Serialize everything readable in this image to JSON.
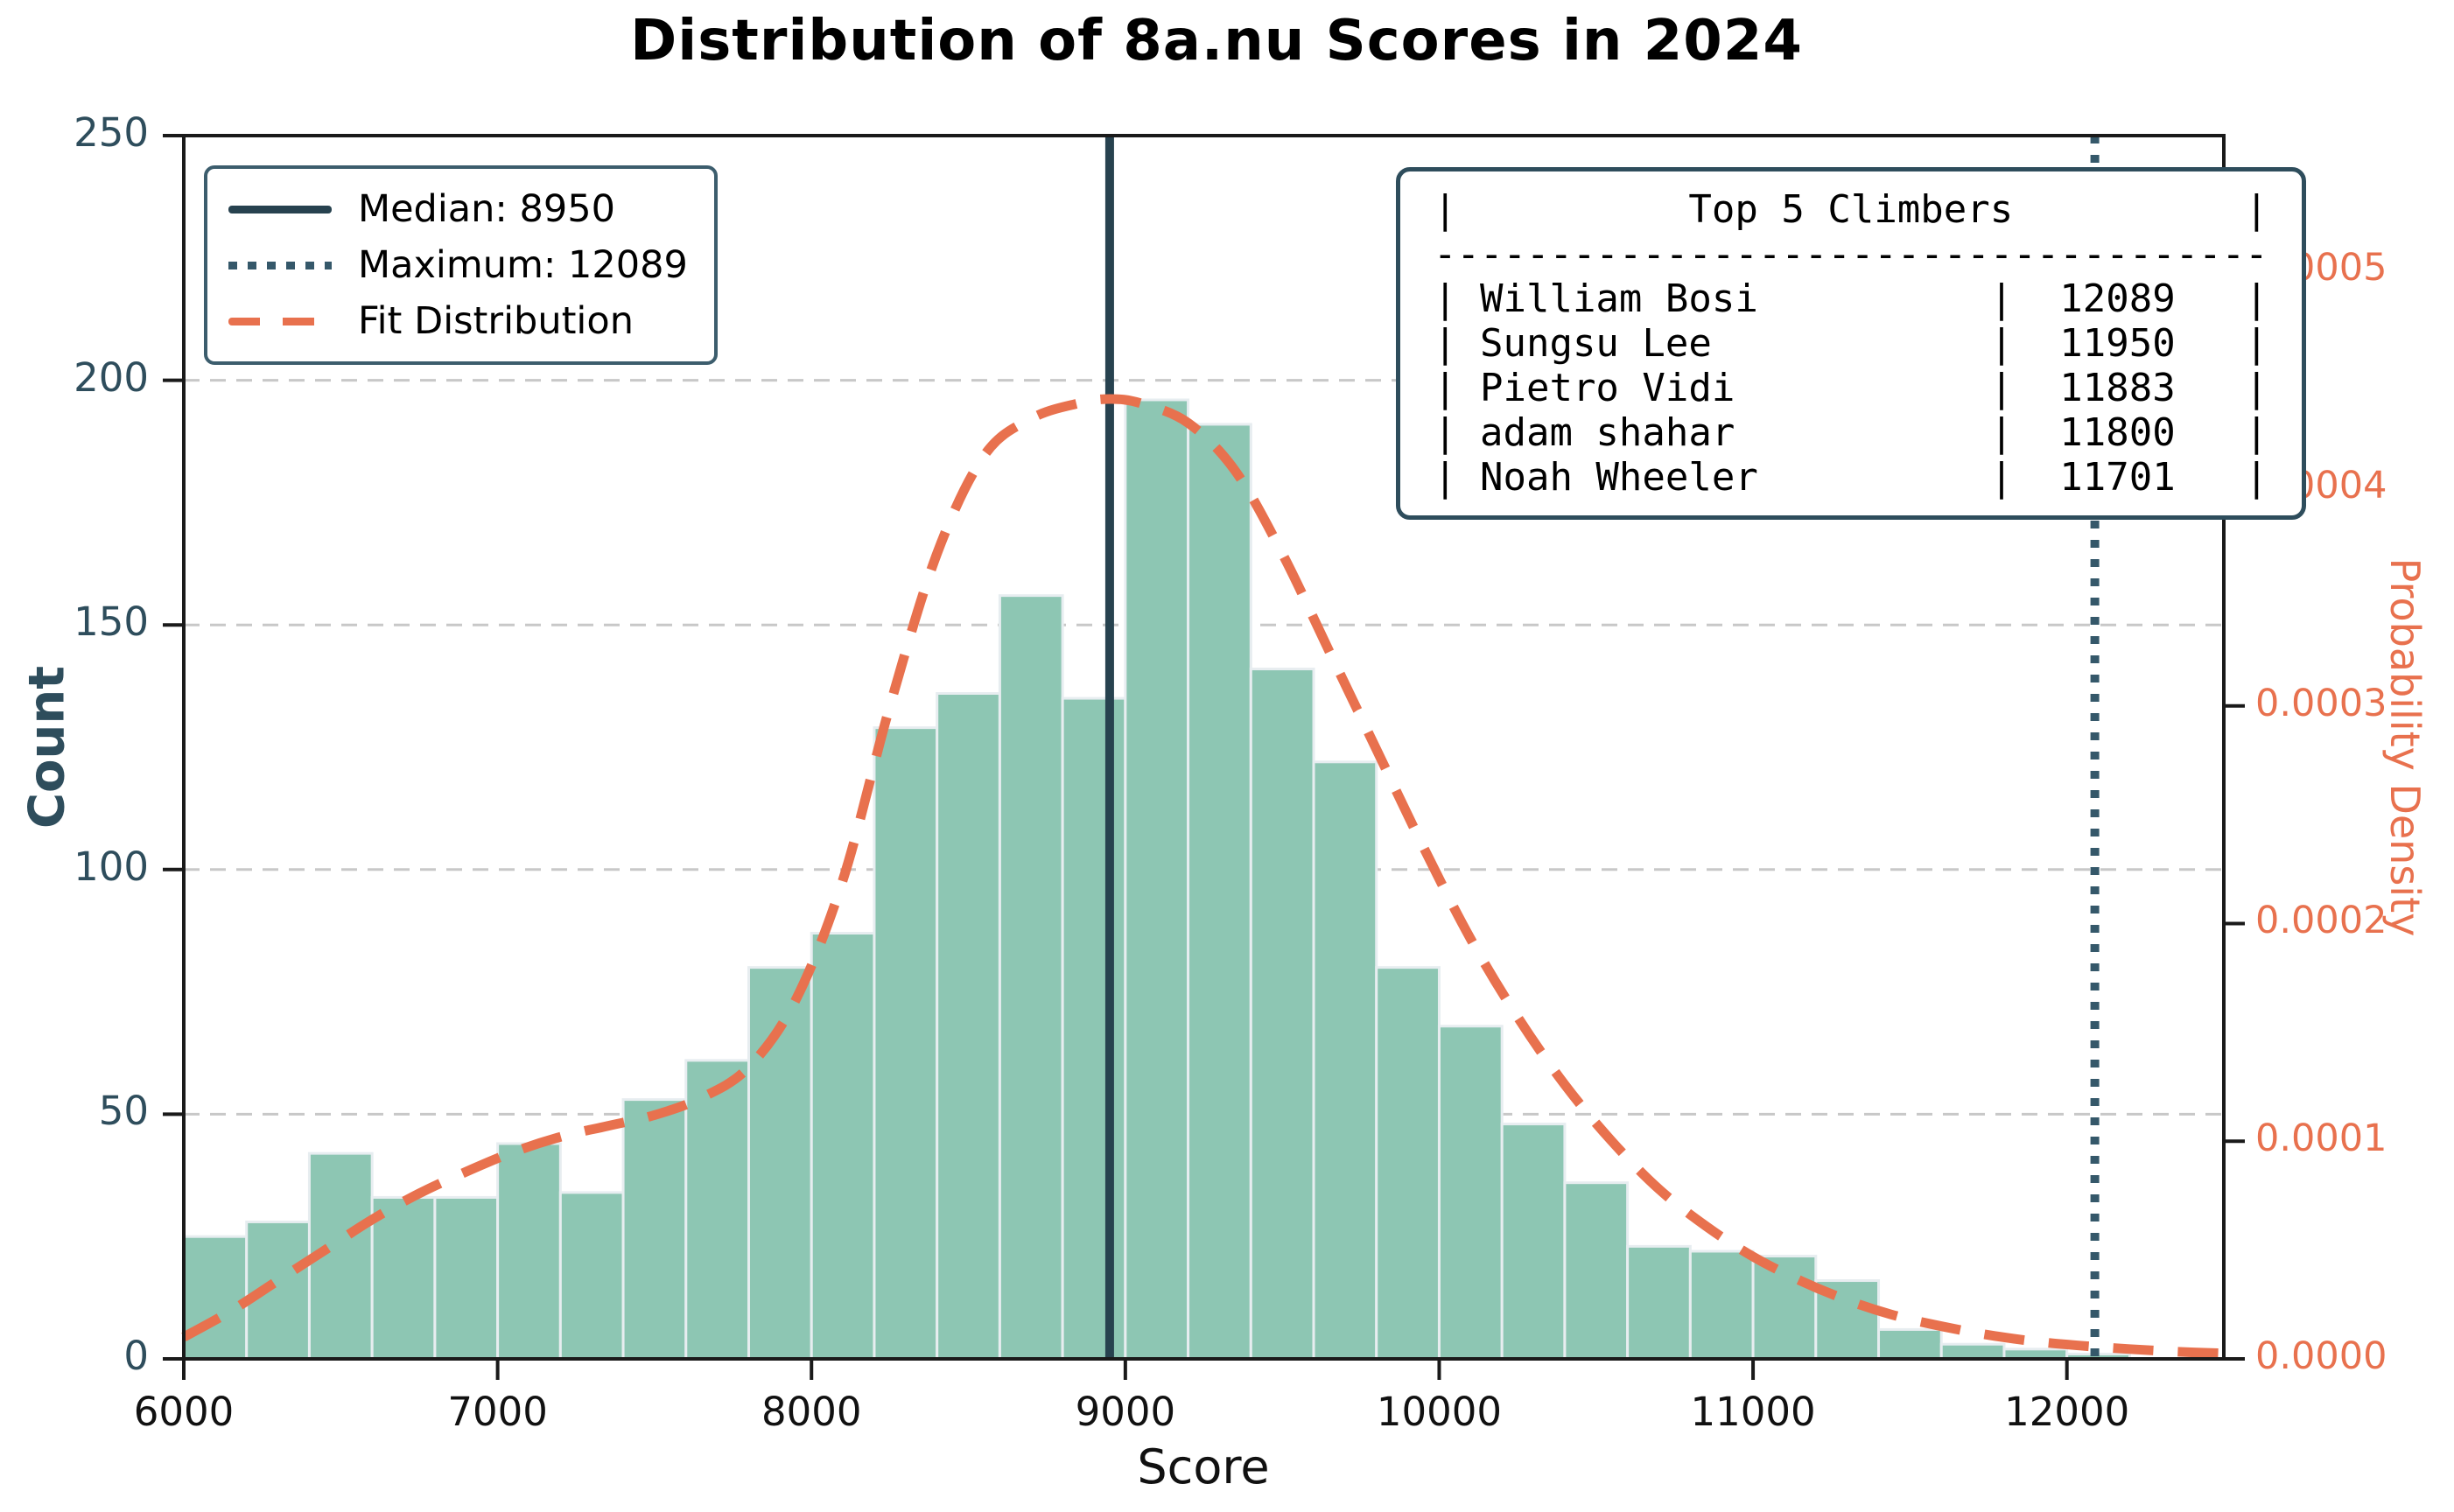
{
  "title": "Distribution of 8a.nu Scores in 2024",
  "axes": {
    "x_label": "Score",
    "y_left_label": "Count",
    "y_right_label": "Probability Density",
    "x_ticks": [
      {
        "value": 6000,
        "label": "6000"
      },
      {
        "value": 7000,
        "label": "7000"
      },
      {
        "value": 8000,
        "label": "8000"
      },
      {
        "value": 9000,
        "label": "9000"
      },
      {
        "value": 10000,
        "label": "10000"
      },
      {
        "value": 11000,
        "label": "11000"
      },
      {
        "value": 12000,
        "label": "12000"
      }
    ],
    "y_left_ticks": [
      {
        "value": 0,
        "label": "0"
      },
      {
        "value": 50,
        "label": "50"
      },
      {
        "value": 100,
        "label": "100"
      },
      {
        "value": 150,
        "label": "150"
      },
      {
        "value": 200,
        "label": "200"
      },
      {
        "value": 250,
        "label": "250"
      }
    ],
    "y_right_ticks": [
      {
        "value": 0.0,
        "label": "0.0000"
      },
      {
        "value": 0.0001,
        "label": "0.0001"
      },
      {
        "value": 0.0002,
        "label": "0.0002"
      },
      {
        "value": 0.0003,
        "label": "0.0003"
      },
      {
        "value": 0.0004,
        "label": "0.0004"
      },
      {
        "value": 0.0005,
        "label": "0.0005"
      }
    ]
  },
  "legend": {
    "items": [
      {
        "label": "Median: 8950",
        "style": "solid-dark"
      },
      {
        "label": "Maximum: 12089",
        "style": "dotted-dark"
      },
      {
        "label": "Fit Distribution",
        "style": "dashed-orange"
      }
    ]
  },
  "top5": {
    "title": "Top 5 Climbers",
    "rows": [
      {
        "name": "William Bosi",
        "score": 12089
      },
      {
        "name": "Sungsu Lee",
        "score": 11950
      },
      {
        "name": "Pietro Vidi",
        "score": 11883
      },
      {
        "name": "adam shahar",
        "score": 11800
      },
      {
        "name": "Noah Wheeler",
        "score": 11701
      }
    ]
  },
  "chart_data": {
    "type": "bar",
    "subtype": "histogram-with-fit",
    "title": "Distribution of 8a.nu Scores in 2024",
    "xlabel": "Score",
    "ylabel_left": "Count",
    "ylabel_right": "Probability Density",
    "x_range": [
      6000,
      12500
    ],
    "y_left_range": [
      0,
      250
    ],
    "y_right_range": [
      0,
      0.000562
    ],
    "grid_counts": [
      50,
      100,
      150,
      200
    ],
    "bin_start": 6000,
    "bin_width": 200,
    "counts": [
      25,
      28,
      42,
      33,
      33,
      44,
      34,
      53,
      61,
      80,
      87,
      129,
      136,
      156,
      135,
      196,
      191,
      141,
      122,
      80,
      68,
      48,
      36,
      23,
      22,
      21,
      16,
      6,
      3,
      2,
      1
    ],
    "median": 8950,
    "maximum": 12089,
    "fit_curve": {
      "points": [
        [
          6000,
          1e-05
        ],
        [
          6150,
          2.2e-05
        ],
        [
          6300,
          3.6e-05
        ],
        [
          6450,
          5e-05
        ],
        [
          6600,
          6.4e-05
        ],
        [
          6750,
          7.6e-05
        ],
        [
          6900,
          8.6e-05
        ],
        [
          7050,
          9.5e-05
        ],
        [
          7200,
          0.000102
        ],
        [
          7350,
          0.000107
        ],
        [
          7500,
          0.000112
        ],
        [
          7650,
          0.00012
        ],
        [
          7800,
          0.000134
        ],
        [
          7950,
          0.000165
        ],
        [
          8100,
          0.00022
        ],
        [
          8250,
          0.0003
        ],
        [
          8400,
          0.00037
        ],
        [
          8550,
          0.000415
        ],
        [
          8700,
          0.000432
        ],
        [
          8850,
          0.000439
        ],
        [
          8950,
          0.000441
        ],
        [
          9050,
          0.000439
        ],
        [
          9200,
          0.00043
        ],
        [
          9350,
          0.000408
        ],
        [
          9500,
          0.00037
        ],
        [
          9650,
          0.000325
        ],
        [
          9800,
          0.00028
        ],
        [
          9950,
          0.000235
        ],
        [
          10100,
          0.000193
        ],
        [
          10250,
          0.000157
        ],
        [
          10400,
          0.000126
        ],
        [
          10550,
          0.0001
        ],
        [
          10700,
          7.8e-05
        ],
        [
          10850,
          6.1e-05
        ],
        [
          11000,
          4.7e-05
        ],
        [
          11150,
          3.6e-05
        ],
        [
          11300,
          2.7e-05
        ],
        [
          11450,
          2e-05
        ],
        [
          11600,
          1.5e-05
        ],
        [
          11750,
          1.1e-05
        ],
        [
          11900,
          8e-06
        ],
        [
          12050,
          6e-06
        ],
        [
          12200,
          4.5e-06
        ],
        [
          12350,
          3.3e-06
        ],
        [
          12500,
          2.5e-06
        ]
      ]
    },
    "colors": {
      "bar_fill": "#8dc6b3",
      "bar_edge": "#e7edf0",
      "median_line": "#27424f",
      "maximum_line": "#35586a",
      "fit_line": "#e8714e",
      "grid": "#c8c8c8",
      "spine": "#1a1a1a",
      "left_axis_text": "#2e4d5c",
      "right_axis_text": "#e8714e"
    }
  }
}
